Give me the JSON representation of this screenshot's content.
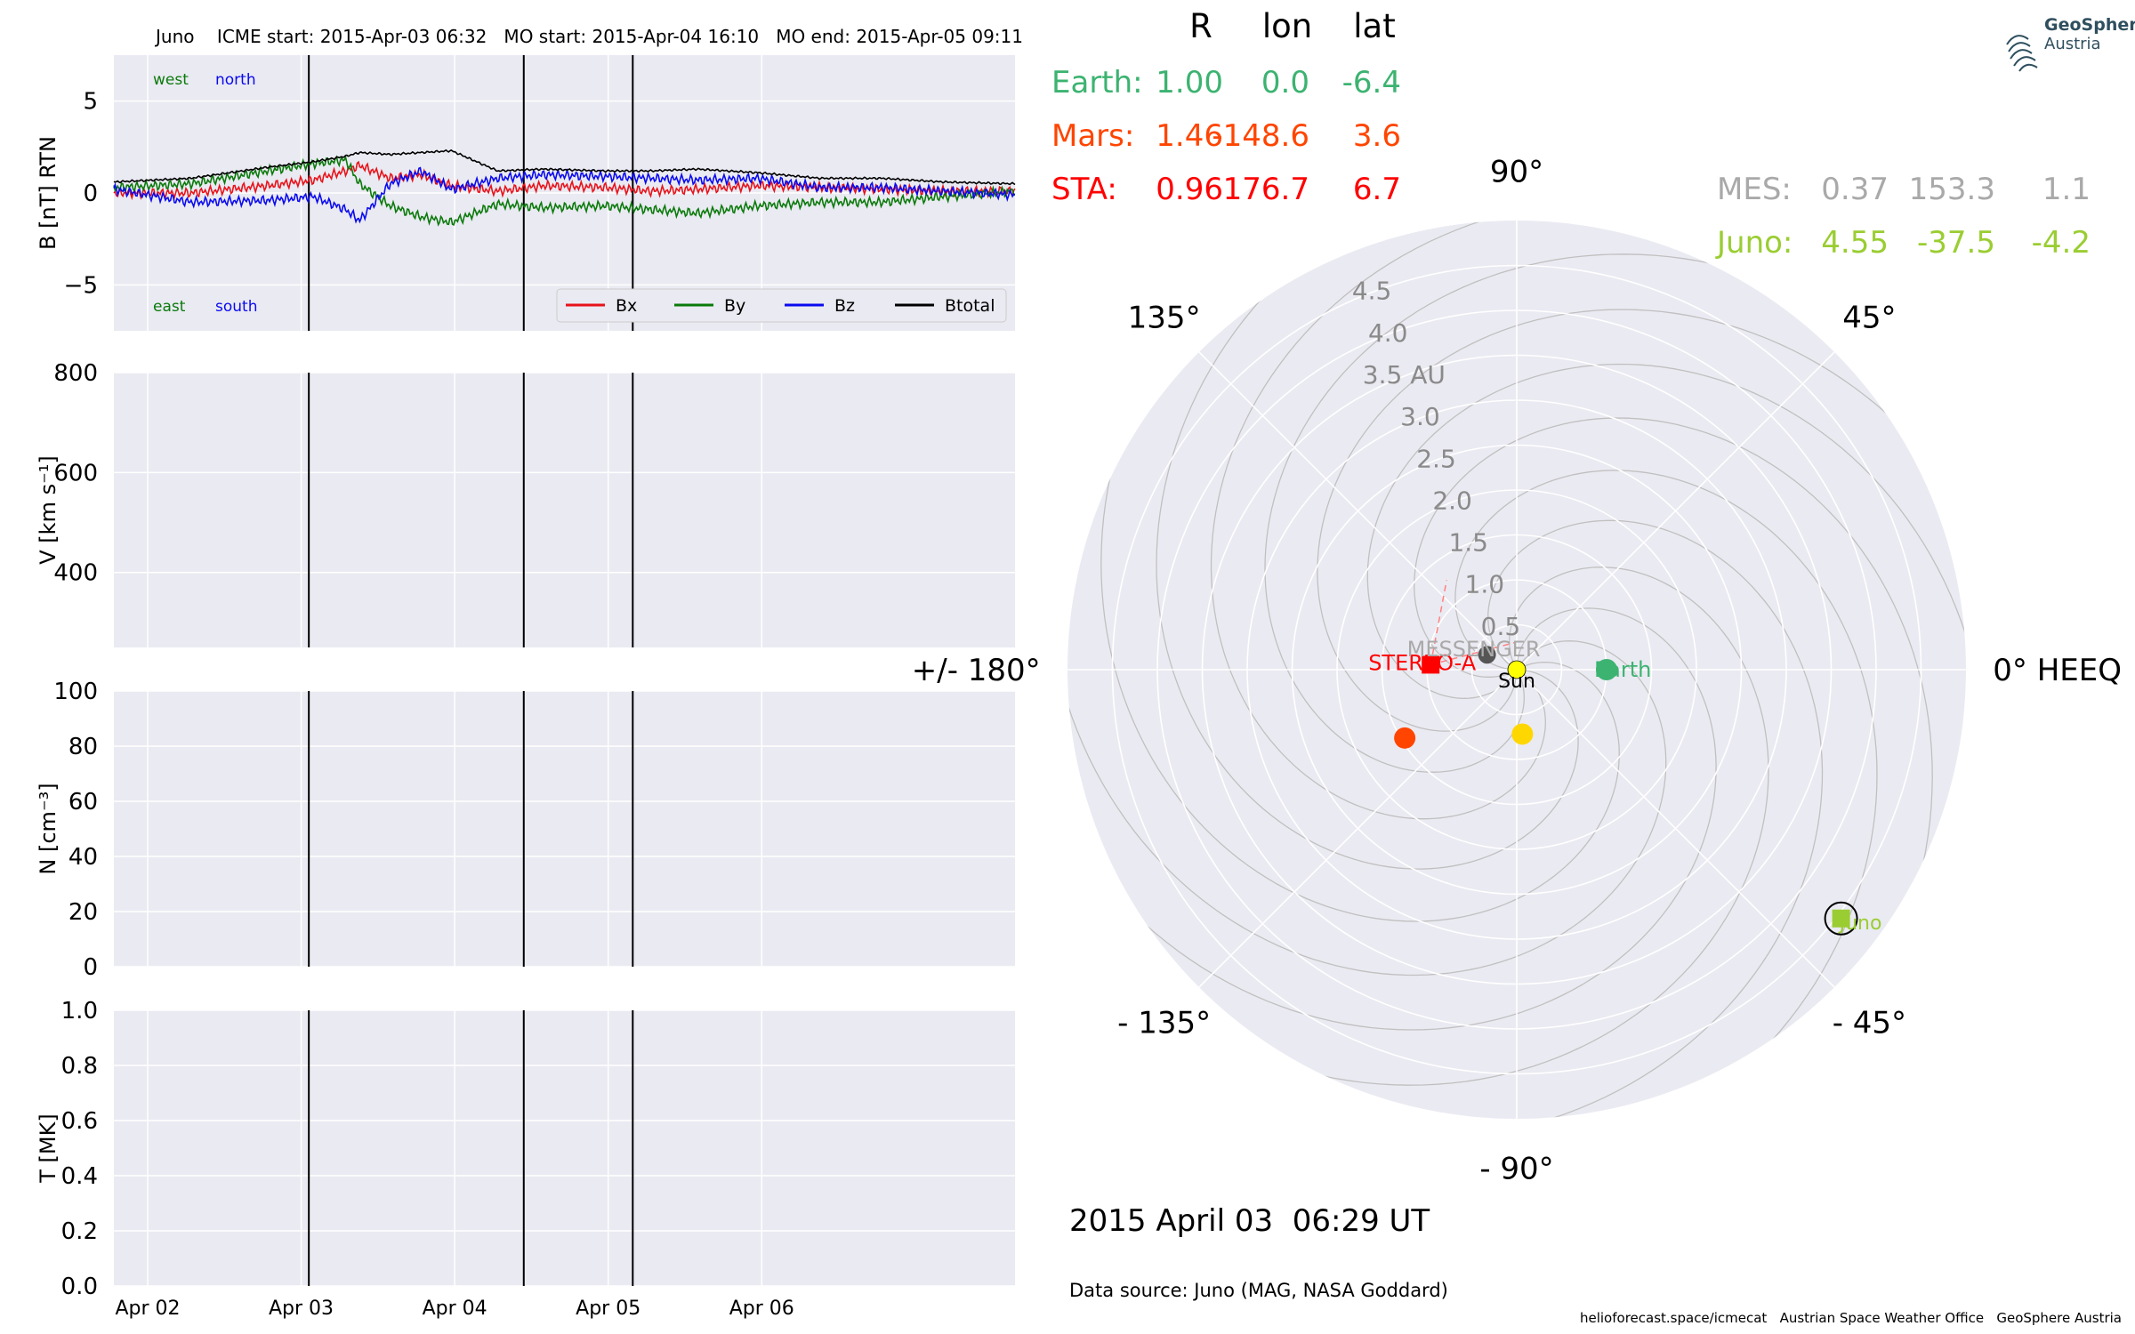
{
  "header": {
    "title": "Juno    ICME start: 2015-Apr-03 06:32   MO start: 2015-Apr-04 16:10   MO end: 2015-Apr-05 09:11"
  },
  "logo": {
    "line1": "GeoSphere",
    "line2": "Austria"
  },
  "footer": {
    "timestamp": "2015 April 03  06:29 UT",
    "data_source": "Data source: Juno (MAG, NASA Goddard)",
    "credits": "helioforecast.space/icmecat   Austrian Space Weather Office   GeoSphere Austria"
  },
  "colors": {
    "panel_bg": "#eaeaf2",
    "grid": "#ffffff",
    "bx": "#e8131b",
    "by": "#0a7a0a",
    "bz": "#0a0aef",
    "btotal": "#000000",
    "earth": "#3cb371",
    "mars": "#ff4500",
    "sta": "#ff0000",
    "mes": "#a9a9a9",
    "juno": "#9acd32",
    "venus": "#ffd700",
    "sun": "#ffff00"
  },
  "chart_data": [
    {
      "type": "line",
      "ylabel": "B [nT] RTN",
      "ylim": [
        -7.5,
        7.5
      ],
      "yticks": [
        "5",
        "0",
        "−5"
      ],
      "ytick_values": [
        5,
        0,
        -5
      ],
      "xlim_days": [
        0,
        5.87
      ],
      "corner_labels": {
        "top_left_green": "west",
        "top_left_blue": "north",
        "bottom_left_green": "east",
        "bottom_left_blue": "south"
      },
      "legend": [
        "Bx",
        "By",
        "Bz",
        "Btotal"
      ],
      "legend_position": "lower-right",
      "series": [
        {
          "name": "Bx",
          "x": [
            0.0,
            0.5,
            1.0,
            1.3,
            1.51,
            1.6,
            1.8,
            2.0,
            2.2,
            2.5,
            2.8,
            3.2,
            3.5,
            3.8,
            4.2,
            4.6,
            5.0,
            5.4,
            5.87
          ],
          "y": [
            0.0,
            0.0,
            0.4,
            0.7,
            1.2,
            1.5,
            0.8,
            1.0,
            0.4,
            0.1,
            0.4,
            0.3,
            0.1,
            0.2,
            0.4,
            0.3,
            0.2,
            0.1,
            0.1
          ]
        },
        {
          "name": "By",
          "x": [
            0.0,
            0.5,
            1.0,
            1.3,
            1.51,
            1.6,
            1.8,
            2.0,
            2.2,
            2.5,
            2.8,
            3.2,
            3.5,
            3.8,
            4.2,
            4.6,
            5.0,
            5.4,
            5.87
          ],
          "y": [
            0.3,
            0.5,
            1.2,
            1.6,
            1.8,
            0.5,
            -0.7,
            -1.3,
            -1.6,
            -0.6,
            -0.8,
            -0.7,
            -0.9,
            -1.1,
            -0.7,
            -0.5,
            -0.5,
            -0.2,
            0.1
          ]
        },
        {
          "name": "Bz",
          "x": [
            0.0,
            0.5,
            1.0,
            1.3,
            1.51,
            1.6,
            1.8,
            2.0,
            2.2,
            2.5,
            2.8,
            3.2,
            3.5,
            3.8,
            4.2,
            4.6,
            5.0,
            5.4,
            5.87
          ],
          "y": [
            0.2,
            -0.5,
            -0.4,
            -0.2,
            -0.9,
            -1.5,
            0.5,
            1.2,
            0.2,
            0.8,
            1.0,
            0.9,
            0.8,
            0.7,
            0.8,
            0.3,
            0.3,
            0.1,
            -0.1
          ]
        },
        {
          "name": "Btotal",
          "x": [
            0.0,
            0.5,
            1.0,
            1.3,
            1.51,
            1.6,
            1.8,
            2.0,
            2.2,
            2.5,
            2.8,
            3.2,
            3.5,
            3.8,
            4.2,
            4.6,
            5.0,
            5.4,
            5.87
          ],
          "y": [
            0.6,
            0.8,
            1.4,
            1.7,
            2.0,
            2.2,
            2.1,
            2.2,
            2.3,
            1.2,
            1.3,
            1.2,
            1.2,
            1.3,
            1.1,
            0.8,
            0.8,
            0.6,
            0.5
          ]
        }
      ],
      "event_lines_days": [
        1.27,
        2.67,
        3.38
      ]
    },
    {
      "type": "line",
      "ylabel": "V [km s⁻¹]",
      "ylim": [
        250,
        800
      ],
      "yticks": [
        "800",
        "600",
        "400"
      ],
      "ytick_values": [
        800,
        600,
        400
      ],
      "series": [],
      "event_lines_days": [
        1.27,
        2.67,
        3.38
      ]
    },
    {
      "type": "line",
      "ylabel": "N [cm⁻³]",
      "ylim": [
        0,
        100
      ],
      "yticks": [
        "100",
        "80",
        "60",
        "40",
        "20",
        "0"
      ],
      "ytick_values": [
        100,
        80,
        60,
        40,
        20,
        0
      ],
      "series": [],
      "event_lines_days": [
        1.27,
        2.67,
        3.38
      ]
    },
    {
      "type": "line",
      "ylabel": "T [MK]",
      "ylim": [
        0,
        1.0
      ],
      "yticks": [
        "1.0",
        "0.8",
        "0.6",
        "0.4",
        "0.2",
        "0.0"
      ],
      "ytick_values": [
        1.0,
        0.8,
        0.6,
        0.4,
        0.2,
        0.0
      ],
      "xticks": [
        "Apr 02",
        "Apr 03",
        "Apr 04",
        "Apr 05",
        "Apr 06"
      ],
      "xtick_days": [
        0.22,
        1.22,
        2.22,
        3.22,
        4.22
      ],
      "series": [],
      "event_lines_days": [
        1.27,
        2.67,
        3.38
      ]
    },
    {
      "type": "scatter",
      "subtype": "polar",
      "rmax_au": 5.0,
      "radial_ticks": [
        "0.5",
        "1.0",
        "1.5",
        "2.0",
        "2.5",
        "3.0",
        "3.5 AU",
        "4.0",
        "4.5"
      ],
      "radial_tick_values": [
        0.5,
        1.0,
        1.5,
        2.0,
        2.5,
        3.0,
        3.5,
        4.0,
        4.5
      ],
      "angle_labels": [
        "0° HEEQ",
        "45°",
        "90°",
        "135°",
        "+/- 180°",
        "- 135°",
        "- 90°",
        "- 45°"
      ],
      "angle_label_degrees": [
        0,
        45,
        90,
        135,
        180,
        -135,
        -90,
        -45
      ],
      "bodies": [
        {
          "name": "Sun",
          "r": 0.0,
          "lon": 0.0,
          "label": "Sun",
          "color_key": "sun"
        },
        {
          "name": "Earth",
          "r": 1.0,
          "lon": 0.0,
          "label": "Earth",
          "color_key": "earth"
        },
        {
          "name": "Mars",
          "r": 1.46,
          "lon": -148.6,
          "label": "",
          "color_key": "mars"
        },
        {
          "name": "Venus",
          "r": 0.72,
          "lon": -85.0,
          "label": "",
          "color_key": "venus"
        },
        {
          "name": "STEREO-A",
          "r": 0.96,
          "lon": 176.7,
          "label": "STEREO-A",
          "color_key": "sta"
        },
        {
          "name": "MESSENGER",
          "r": 0.37,
          "lon": 153.3,
          "label": "MESSENGER",
          "color_key": "mes"
        },
        {
          "name": "Juno",
          "r": 4.55,
          "lon": -37.5,
          "label": "Juno",
          "color_key": "juno"
        }
      ],
      "position_table": {
        "headers": [
          "R",
          "lon",
          "lat"
        ],
        "rows_left": [
          {
            "name": "Earth:",
            "values": [
              "1.00",
              "0.0",
              "-6.4"
            ],
            "color_key": "earth"
          },
          {
            "name": "Mars:",
            "values": [
              "1.46",
              "-148.6",
              "3.6"
            ],
            "color_key": "mars"
          },
          {
            "name": "STA:",
            "values": [
              "0.96",
              "176.7",
              "6.7"
            ],
            "color_key": "sta"
          }
        ],
        "rows_right": [
          {
            "name": "MES:",
            "values": [
              "0.37",
              "153.3",
              "1.1"
            ],
            "color_key": "mes"
          },
          {
            "name": "Juno:",
            "values": [
              "4.55",
              "-37.5",
              "-4.2"
            ],
            "color_key": "juno"
          }
        ]
      }
    }
  ]
}
